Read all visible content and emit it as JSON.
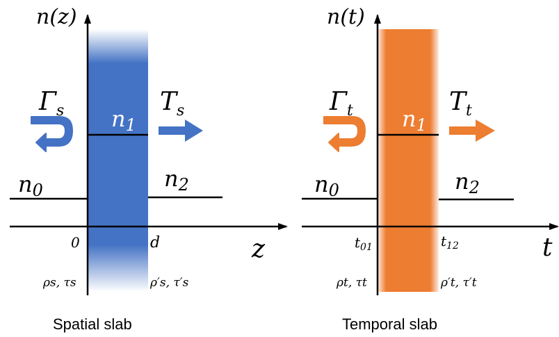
{
  "colors": {
    "spatial": "#4472C4",
    "temporal": "#ED7D31",
    "line": "#000000"
  },
  "spatial": {
    "axis_y": "n(z)",
    "axis_x": "z",
    "reflect_sym": "Γ",
    "reflect_sub": "s",
    "trans_sym": "T",
    "trans_sub": "s",
    "n0": "n",
    "n0_sub": "0",
    "n1": "n",
    "n1_sub": "1",
    "n2": "n",
    "n2_sub": "2",
    "tick_left": "0",
    "tick_right": "d",
    "coef_left": "ρs, τs",
    "coef_right": "ρ′s, τ′s",
    "caption": "Spatial slab",
    "arrow_icons": [
      "u-turn-arrow-icon",
      "right-arrow-icon"
    ]
  },
  "temporal": {
    "axis_y": "n(t)",
    "axis_x": "t",
    "reflect_sym": "Γ",
    "reflect_sub": "t",
    "trans_sym": "T",
    "trans_sub": "t",
    "n0": "n",
    "n0_sub": "0",
    "n1": "n",
    "n1_sub": "1",
    "n2": "n",
    "n2_sub": "2",
    "tick_left": "t",
    "tick_left_sub": "01",
    "tick_right": "t",
    "tick_right_sub": "12",
    "coef_left": "ρt, τt",
    "coef_right": "ρ′t, τ′t",
    "caption": "Temporal slab",
    "arrow_icons": [
      "u-turn-arrow-icon",
      "right-arrow-icon"
    ]
  }
}
